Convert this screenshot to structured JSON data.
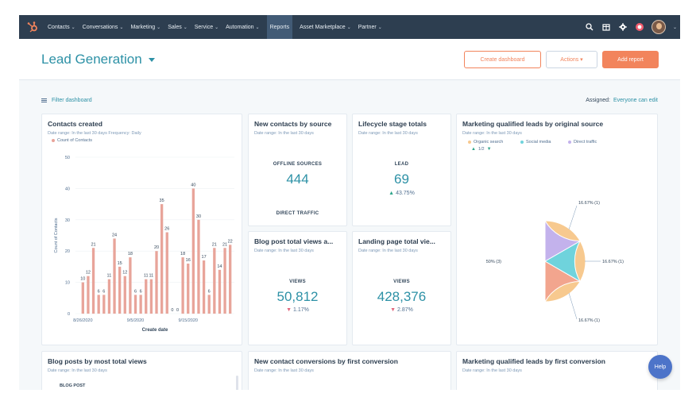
{
  "nav": {
    "items": [
      {
        "label": "Contacts",
        "chev": "⌄"
      },
      {
        "label": "Conversations",
        "chev": "⌄"
      },
      {
        "label": "Marketing",
        "chev": "⌄"
      },
      {
        "label": "Sales",
        "chev": "⌄"
      },
      {
        "label": "Service",
        "chev": "⌄"
      },
      {
        "label": "Automation",
        "chev": "⌄"
      },
      {
        "label": "Reports",
        "chev": ""
      },
      {
        "label": "Asset Marketplace",
        "chev": "⌄"
      },
      {
        "label": "Partner",
        "chev": "⌄"
      }
    ],
    "avatar_chev": "⌄"
  },
  "header": {
    "title": "Lead Generation",
    "create_dashboard": "Create dashboard",
    "actions": "Actions ▾",
    "add_report": "Add report"
  },
  "filter": {
    "label": "Filter dashboard",
    "assigned": "Assigned:",
    "everyone": "Everyone can edit"
  },
  "colors": {
    "accent": "#2d91a6",
    "orange": "#f2845c",
    "bar": "#e8a49a",
    "pie_orange": "#f7c98f",
    "pie_salmon": "#f2a58e",
    "pie_teal": "#6fd3dc",
    "pie_purple": "#c3b2ec",
    "up": "#2fa58b",
    "down": "#e2677d",
    "help": "#4d74c9"
  },
  "cards": {
    "contacts_created": {
      "title": "Contacts created",
      "sub": "Date range: In the last 30 days     Frequency: Daily",
      "legend": "Count of Contacts"
    },
    "new_contacts_source": {
      "title": "New contacts by source",
      "sub": "Date range: In the last 30 days",
      "label1": "OFFLINE SOURCES",
      "value1": "444",
      "label2": "DIRECT TRAFFIC"
    },
    "lifecycle": {
      "title": "Lifecycle stage totals",
      "sub": "Date range: In the last 30 days",
      "label": "LEAD",
      "value": "69",
      "change": "43.75%"
    },
    "mql_source": {
      "title": "Marketing qualified leads by original source",
      "sub": "Date range: In the last 30 days",
      "legend": [
        "Organic search",
        "Social media",
        "Direct traffic"
      ],
      "pager": "1/2"
    },
    "blog_views": {
      "title": "Blog post total views a...",
      "sub": "Date range: In the last 30 days",
      "label": "VIEWS",
      "value": "50,812",
      "change": "1.17%"
    },
    "landing_views": {
      "title": "Landing page total vie...",
      "sub": "Date range: In the last 30 days",
      "label": "VIEWS",
      "value": "428,376",
      "change": "2.87%"
    },
    "blog_most_views": {
      "title": "Blog posts by most total views",
      "sub": "Date range: In the last 30 days",
      "col": "BLOG POST"
    },
    "new_contact_conv": {
      "title": "New contact conversions by first conversion",
      "sub": "Date range: In the last 30 days"
    },
    "mql_first_conv": {
      "title": "Marketing qualified leads by first conversion",
      "sub": "Date range: In the last 30 days"
    }
  },
  "chart_data": [
    {
      "type": "bar",
      "title": "Contacts created",
      "xlabel": "Create date",
      "ylabel": "Count of Contacts",
      "ylim": [
        0,
        50
      ],
      "yticks": [
        0,
        10,
        20,
        30,
        40,
        50
      ],
      "xticks": [
        "8/26/2020",
        "9/5/2020",
        "9/15/2020"
      ],
      "series": [
        {
          "name": "Count of Contacts"
        }
      ],
      "values": [
        10,
        12,
        21,
        6,
        6,
        11,
        24,
        15,
        12,
        18,
        6,
        6,
        11,
        11,
        20,
        35,
        26,
        0,
        0,
        18,
        16,
        40,
        30,
        17,
        6,
        21,
        14,
        21,
        22
      ],
      "grid": true
    },
    {
      "type": "pie",
      "title": "Marketing qualified leads by original source",
      "slices": [
        {
          "label": "50% (3)",
          "value": 50
        },
        {
          "label": "16.67% (1)",
          "value": 16.67
        },
        {
          "label": "16.67% (1)",
          "value": 16.67
        },
        {
          "label": "16.67% (1)",
          "value": 16.67
        }
      ]
    }
  ],
  "help": "Help"
}
